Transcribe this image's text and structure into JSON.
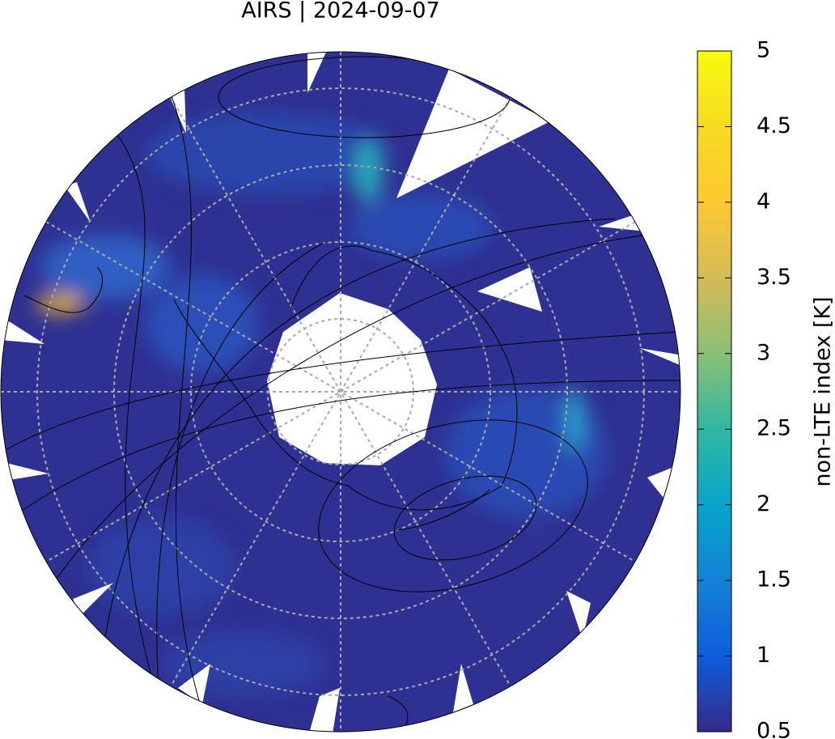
{
  "title": "AIRS | 2024-09-07",
  "colorbar": {
    "label": "non-LTE index [K]",
    "range": [
      0.5,
      5
    ],
    "ticks": [
      0.5,
      1,
      1.5,
      2,
      2.5,
      3,
      3.5,
      4,
      4.5,
      5
    ]
  }
}
